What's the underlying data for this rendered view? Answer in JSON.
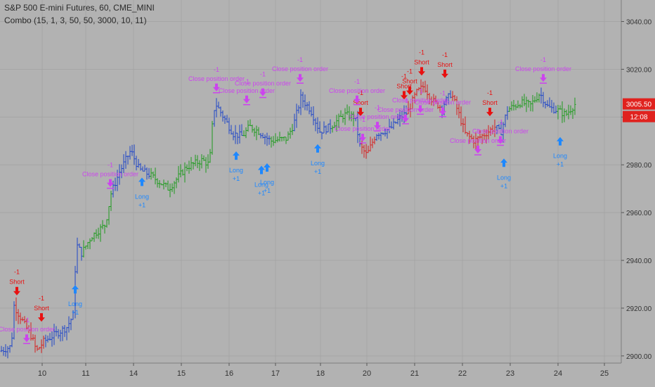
{
  "header": {
    "symbol_title": "S&P 500 E-mini Futures, 60, CME_MINI",
    "study_label": "Combo (15, 1, 3, 50, 50, 3000, 10, 11)"
  },
  "price_badge": {
    "price": "3005.50",
    "countdown": "12:08",
    "color": "#e0221e"
  },
  "colors": {
    "up": "#1e9b1e",
    "down": "#d62020",
    "neutral": "#1f45c8",
    "long": "#1e88ff",
    "short": "#e81010",
    "close": "#cc44ee",
    "grid": "#a5a5a5"
  },
  "chart_data": {
    "type": "ohlc",
    "ylim": [
      2897,
      3049
    ],
    "y_ticks": [
      2900,
      2920,
      2940,
      2960,
      2980,
      3000,
      3020,
      3040
    ],
    "y_tick_labels": [
      "2900.00",
      "2920.00",
      "2940.00",
      "2960.00",
      "2980.00",
      "3000.00",
      "3020.00",
      "3040.00"
    ],
    "x_ticks": [
      "10",
      "11",
      "14",
      "15",
      "16",
      "17",
      "18",
      "20",
      "21",
      "22",
      "23",
      "24",
      "25",
      "28"
    ],
    "price_path": [
      [
        0,
        2902,
        "blue"
      ],
      [
        16,
        2904,
        "blue"
      ],
      [
        20,
        2921,
        "red"
      ],
      [
        35,
        2913,
        "red"
      ],
      [
        45,
        2908,
        "red"
      ],
      [
        52,
        2902,
        "red"
      ],
      [
        62,
        2906,
        "blue"
      ],
      [
        78,
        2909,
        "blue"
      ],
      [
        95,
        2912,
        "blue"
      ],
      [
        104,
        2917,
        "blue"
      ],
      [
        106,
        2933,
        "blue"
      ],
      [
        110,
        2946,
        "blue"
      ],
      [
        116,
        2943,
        "green"
      ],
      [
        130,
        2950,
        "green"
      ],
      [
        150,
        2955,
        "green"
      ],
      [
        158,
        2968,
        "blue"
      ],
      [
        170,
        2977,
        "blue"
      ],
      [
        186,
        2986,
        "blue"
      ],
      [
        198,
        2978,
        "blue"
      ],
      [
        212,
        2976,
        "green"
      ],
      [
        240,
        2970,
        "green"
      ],
      [
        265,
        2979,
        "green"
      ],
      [
        288,
        2982,
        "green"
      ],
      [
        298,
        2980,
        "green"
      ],
      [
        302,
        2996,
        "blue"
      ],
      [
        306,
        3006,
        "blue"
      ],
      [
        318,
        3000,
        "blue"
      ],
      [
        332,
        2993,
        "blue"
      ],
      [
        345,
        2992,
        "green"
      ],
      [
        355,
        2996,
        "green"
      ],
      [
        368,
        2994,
        "blue"
      ],
      [
        385,
        2990,
        "green"
      ],
      [
        408,
        2991,
        "green"
      ],
      [
        418,
        2997,
        "blue"
      ],
      [
        428,
        3008,
        "blue"
      ],
      [
        442,
        3003,
        "blue"
      ],
      [
        455,
        2994,
        "blue"
      ],
      [
        470,
        2996,
        "green"
      ],
      [
        490,
        3001,
        "green"
      ],
      [
        505,
        3000,
        "blue"
      ],
      [
        512,
        2988,
        "red"
      ],
      [
        522,
        2984,
        "red"
      ],
      [
        535,
        2993,
        "blue"
      ],
      [
        555,
        2995,
        "blue"
      ],
      [
        570,
        3000,
        "blue"
      ],
      [
        580,
        3002,
        "red"
      ],
      [
        592,
        3010,
        "red"
      ],
      [
        603,
        3013,
        "red"
      ],
      [
        615,
        3007,
        "red"
      ],
      [
        628,
        3004,
        "blue"
      ],
      [
        642,
        3010,
        "red"
      ],
      [
        652,
        3002,
        "red"
      ],
      [
        662,
        2993,
        "red"
      ],
      [
        675,
        2990,
        "red"
      ],
      [
        690,
        2993,
        "red"
      ],
      [
        705,
        2996,
        "blue"
      ],
      [
        712,
        2993,
        "blue"
      ],
      [
        722,
        3003,
        "green"
      ],
      [
        740,
        3006,
        "green"
      ],
      [
        755,
        3005,
        "green"
      ],
      [
        768,
        3010,
        "blue"
      ],
      [
        780,
        3004,
        "blue"
      ],
      [
        792,
        3003,
        "green"
      ],
      [
        805,
        3001,
        "green"
      ],
      [
        820,
        3006,
        "red"
      ]
    ],
    "signals": [
      {
        "kind": "short",
        "bar": 24,
        "price": 2923,
        "side": "above"
      },
      {
        "kind": "short",
        "bar": 59,
        "price": 2912,
        "side": "above"
      },
      {
        "kind": "close",
        "bar": 38,
        "price": 2904,
        "side": "above"
      },
      {
        "kind": "long",
        "bar": 107,
        "price": 2932,
        "side": "below"
      },
      {
        "kind": "close",
        "bar": 157,
        "price": 2969,
        "side": "above"
      },
      {
        "kind": "long",
        "bar": 202,
        "price": 2977,
        "side": "below"
      },
      {
        "kind": "close",
        "bar": 308,
        "price": 3009,
        "side": "above"
      },
      {
        "kind": "close",
        "bar": 351,
        "price": 3004,
        "side": "above"
      },
      {
        "kind": "close",
        "bar": 374,
        "price": 3007,
        "side": "above"
      },
      {
        "kind": "close",
        "bar": 427,
        "price": 3013,
        "side": "above"
      },
      {
        "kind": "long",
        "bar": 336,
        "price": 2988,
        "side": "below"
      },
      {
        "kind": "long",
        "bar": 372,
        "price": 2982,
        "side": "below"
      },
      {
        "kind": "long",
        "bar": 380,
        "price": 2983,
        "side": "below"
      },
      {
        "kind": "long",
        "bar": 452,
        "price": 2991,
        "side": "below"
      },
      {
        "kind": "short",
        "bar": 513,
        "price": 2998,
        "side": "above"
      },
      {
        "kind": "close",
        "bar": 508,
        "price": 3004,
        "side": "above"
      },
      {
        "kind": "close",
        "bar": 516,
        "price": 2988,
        "side": "above"
      },
      {
        "kind": "close",
        "bar": 537,
        "price": 2993,
        "side": "above"
      },
      {
        "kind": "short",
        "bar": 575,
        "price": 3005,
        "side": "above"
      },
      {
        "kind": "short",
        "bar": 583,
        "price": 3007,
        "side": "above"
      },
      {
        "kind": "short",
        "bar": 600,
        "price": 3015,
        "side": "above"
      },
      {
        "kind": "short",
        "bar": 633,
        "price": 3014,
        "side": "above"
      },
      {
        "kind": "close",
        "bar": 577,
        "price": 2996,
        "side": "above"
      },
      {
        "kind": "close",
        "bar": 598,
        "price": 3000,
        "side": "above"
      },
      {
        "kind": "close",
        "bar": 630,
        "price": 2999,
        "side": "above"
      },
      {
        "kind": "short",
        "bar": 697,
        "price": 2998,
        "side": "above"
      },
      {
        "kind": "close",
        "bar": 680,
        "price": 2983,
        "side": "above"
      },
      {
        "kind": "close",
        "bar": 712,
        "price": 2987,
        "side": "above"
      },
      {
        "kind": "long",
        "bar": 717,
        "price": 2985,
        "side": "below"
      },
      {
        "kind": "close",
        "bar": 773,
        "price": 3013,
        "side": "above"
      },
      {
        "kind": "long",
        "bar": 797,
        "price": 2994,
        "side": "below"
      }
    ],
    "signal_text": {
      "long_label": "Long",
      "long_qty": "+1",
      "short_label": "Short",
      "short_qty": "-1",
      "close_label": "Close position order",
      "close_qty_up": "-1",
      "close_qty_down": "+1"
    }
  }
}
